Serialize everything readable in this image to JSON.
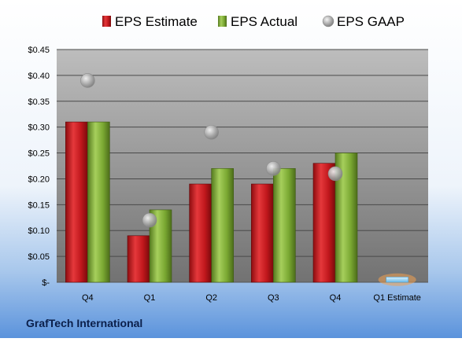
{
  "chart_data": {
    "type": "bar",
    "company": "GrafTech International",
    "categories": [
      "Q4",
      "Q1",
      "Q2",
      "Q3",
      "Q4",
      "Q1 Estimate"
    ],
    "series": [
      {
        "name": "EPS Estimate",
        "kind": "bar",
        "color": "#c0171c",
        "values": [
          0.31,
          0.09,
          0.19,
          0.19,
          0.23,
          null
        ]
      },
      {
        "name": "EPS Actual",
        "kind": "bar",
        "color": "#7aa832",
        "values": [
          0.31,
          0.14,
          0.22,
          0.22,
          0.25,
          null
        ]
      },
      {
        "name": "EPS GAAP",
        "kind": "marker",
        "color": "#a0a0a0",
        "values": [
          0.39,
          0.12,
          0.29,
          0.22,
          0.21,
          null
        ]
      }
    ],
    "estimate": {
      "category": "Q1 Estimate",
      "value": 0.01,
      "color": "#8fd0f4",
      "glow": "#f0a050"
    },
    "ylim": [
      0,
      0.45
    ],
    "yticks": [
      {
        "value": 0,
        "label": "$-"
      },
      {
        "value": 0.05,
        "label": "$0.05"
      },
      {
        "value": 0.1,
        "label": "$0.10"
      },
      {
        "value": 0.15,
        "label": "$0.15"
      },
      {
        "value": 0.2,
        "label": "$0.20"
      },
      {
        "value": 0.25,
        "label": "$0.25"
      },
      {
        "value": 0.3,
        "label": "$0.30"
      },
      {
        "value": 0.35,
        "label": "$0.35"
      },
      {
        "value": 0.4,
        "label": "$0.40"
      },
      {
        "value": 0.45,
        "label": "$0.45"
      }
    ],
    "grid": true,
    "legend_position": "top"
  }
}
